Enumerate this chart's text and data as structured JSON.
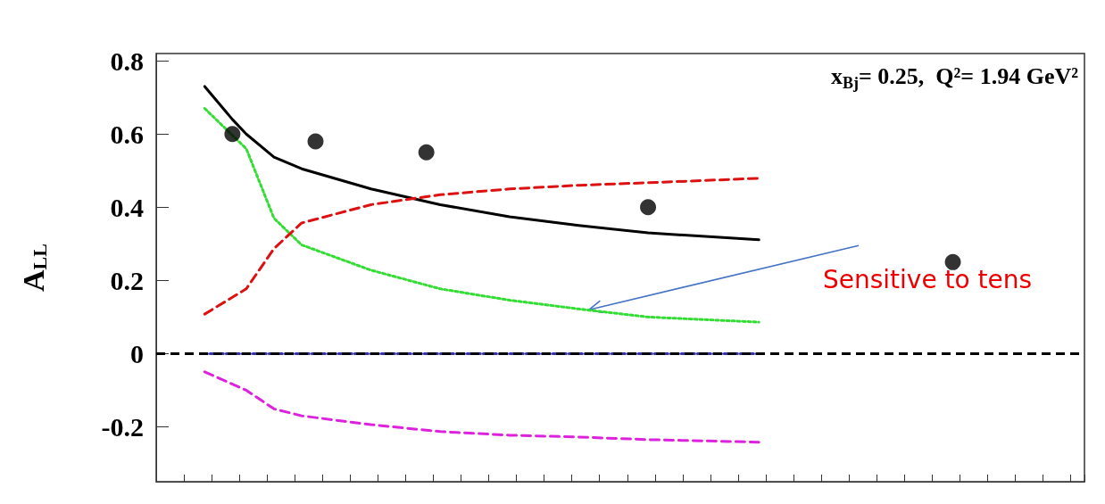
{
  "chart_data": {
    "type": "line",
    "ylabel": "A$_{LL}$",
    "categories": [
      null,
      null,
      null,
      null,
      null,
      null,
      null,
      null,
      null,
      null,
      null,
      null,
      null,
      null,
      null,
      null,
      null,
      null,
      null,
      null,
      null,
      null,
      null,
      null,
      null,
      null,
      null,
      null,
      null,
      null,
      null,
      null,
      null,
      null,
      null,
      null,
      null,
      null,
      null,
      null,
      null,
      null,
      null,
      null,
      null,
      null,
      null,
      null,
      null,
      null,
      null,
      null,
      null,
      null,
      null,
      null,
      null,
      null,
      null,
      null,
      null,
      null,
      null,
      null,
      null,
      null,
      null
    ],
    "series": [
      {
        "color": "#000000",
        "line_style": "solid",
        "values": [
          null,
          null,
          null,
          0.73,
          null,
          0.64,
          0.6,
          null,
          0.537,
          null,
          0.505,
          null,
          null,
          null,
          null,
          0.45,
          null,
          null,
          null,
          null,
          0.407,
          null,
          null,
          null,
          null,
          0.374,
          null,
          null,
          null,
          null,
          0.35,
          null,
          null,
          null,
          null,
          0.33,
          null,
          null,
          null,
          null,
          null,
          null,
          null,
          0.311,
          null,
          null,
          null,
          null,
          null,
          null,
          null,
          null,
          null,
          null,
          null,
          null,
          null,
          null,
          null,
          null,
          null,
          null,
          null,
          null,
          null,
          null,
          null
        ]
      },
      {
        "color": "#33dd33",
        "line_style": "dotted",
        "values": [
          null,
          null,
          null,
          0.67,
          null,
          null,
          0.56,
          null,
          0.37,
          null,
          0.297,
          null,
          null,
          null,
          null,
          0.228,
          null,
          null,
          null,
          null,
          0.177,
          null,
          null,
          null,
          null,
          0.146,
          null,
          null,
          null,
          null,
          0.122,
          null,
          null,
          null,
          null,
          0.1,
          null,
          null,
          null,
          null,
          null,
          null,
          null,
          0.086,
          null,
          null,
          null,
          null,
          null,
          null,
          null,
          null,
          null,
          null,
          null,
          null,
          null,
          null,
          null,
          null,
          null,
          null,
          null,
          null,
          null,
          null,
          null
        ]
      },
      {
        "color": "#dd1111",
        "line_style": "dashed",
        "values": [
          null,
          null,
          null,
          0.108,
          null,
          null,
          0.177,
          null,
          0.287,
          null,
          0.357,
          null,
          null,
          null,
          null,
          0.407,
          null,
          null,
          null,
          null,
          0.434,
          null,
          null,
          null,
          null,
          0.45,
          null,
          null,
          null,
          null,
          0.46,
          null,
          null,
          null,
          null,
          0.467,
          null,
          null,
          null,
          null,
          null,
          null,
          null,
          0.479,
          null,
          null,
          null,
          null,
          null,
          null,
          null,
          null,
          null,
          null,
          null,
          null,
          null,
          null,
          null,
          null,
          null,
          null,
          null,
          null,
          null,
          null,
          null
        ]
      },
      {
        "color": "#dd22dd",
        "line_style": "dashed",
        "values": [
          null,
          null,
          null,
          -0.05,
          null,
          null,
          -0.1,
          null,
          -0.151,
          null,
          -0.17,
          null,
          null,
          null,
          null,
          -0.194,
          null,
          null,
          null,
          null,
          -0.213,
          null,
          null,
          null,
          null,
          -0.223,
          null,
          null,
          null,
          null,
          -0.228,
          null,
          null,
          null,
          null,
          -0.235,
          null,
          null,
          null,
          null,
          null,
          null,
          null,
          -0.242,
          null,
          null,
          null,
          null,
          null,
          null,
          null,
          null,
          null,
          null,
          null,
          null,
          null,
          null,
          null,
          null,
          null,
          null,
          null,
          null,
          null,
          null,
          null
        ]
      },
      {
        "color": "#3333aa",
        "line_style": "dotted",
        "values": [
          null,
          null,
          null,
          0,
          null,
          null,
          null,
          null,
          null,
          null,
          null,
          null,
          null,
          null,
          null,
          null,
          null,
          null,
          null,
          null,
          null,
          null,
          null,
          null,
          null,
          null,
          null,
          null,
          null,
          null,
          null,
          null,
          null,
          null,
          null,
          null,
          null,
          null,
          null,
          null,
          null,
          null,
          null,
          0,
          null,
          null,
          null,
          null,
          null,
          null,
          null,
          null,
          null,
          null,
          null,
          null,
          null,
          null,
          null,
          null,
          null,
          null,
          null,
          null,
          null,
          null,
          null
        ]
      },
      {
        "type": "scatter",
        "marker": "circle",
        "color": "#000000",
        "values": [
          null,
          null,
          null,
          null,
          null,
          0.6,
          null,
          null,
          null,
          null,
          null,
          0.58,
          null,
          null,
          null,
          null,
          null,
          null,
          null,
          0.55,
          null,
          null,
          null,
          null,
          null,
          null,
          null,
          null,
          null,
          null,
          null,
          null,
          null,
          null,
          null,
          0.4,
          null,
          null,
          null,
          null,
          null,
          null,
          null,
          null,
          null,
          null,
          null,
          null,
          null,
          null,
          null,
          null,
          null,
          null,
          null,
          null,
          null,
          0.25,
          null,
          null,
          null,
          null,
          null,
          null,
          null,
          null,
          null
        ]
      }
    ],
    "marker": "none",
    "ylim": [
      -0.35,
      0.82
    ],
    "yticks": [
      -0.2,
      0,
      0.2,
      0.4,
      0.6,
      0.8
    ],
    "tick_labels": "y",
    "grid": false,
    "ref_lines": [
      {
        "axis": "y",
        "value": 0,
        "color": "#000000",
        "line_style": "dashed"
      }
    ],
    "annotations": [
      "x$_{Bj}$= 0.25,  Q²= 1.94 GeV²",
      "Sensitive to tens"
    ]
  }
}
